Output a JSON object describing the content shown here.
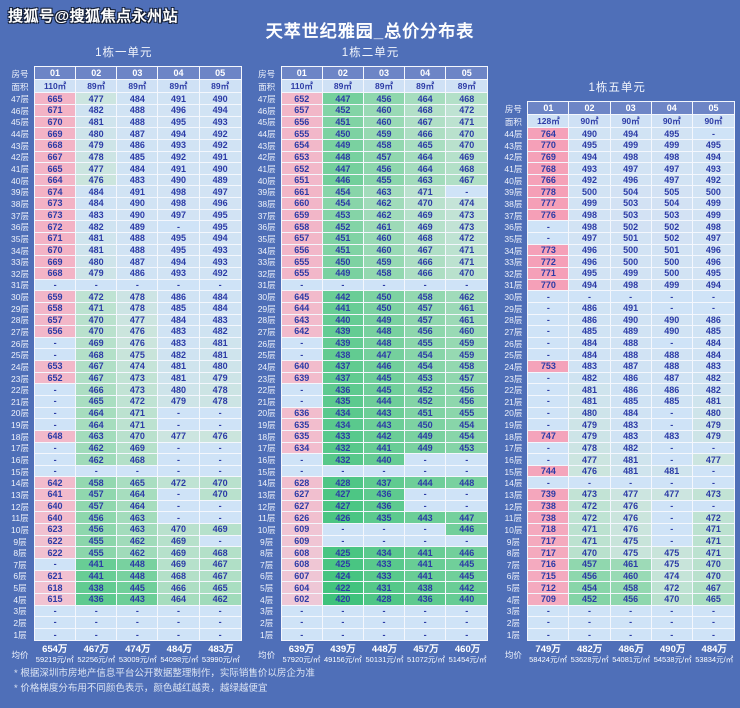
{
  "watermark": "搜狐号@搜狐焦点永州站",
  "title": "天萃世纪雅园_总价分布表",
  "labels": {
    "room_no": "房号",
    "area": "面积",
    "floor_suffix": "层",
    "average": "均价",
    "dash": "-"
  },
  "footnotes": [
    "* 根据深圳市房地产信息平台公开数据整理制作，实际销售价以房企为准",
    "* 价格梯度分布用不同颜色表示，颜色越红越贵，越绿越便宜"
  ],
  "colors": {
    "page_bg": "#4f6fb8",
    "grid_border": "#f4f7fd",
    "cell_text": "#2c3ba6",
    "room_header_bg": "#6d85c6",
    "area_header_bg": "#cfe1f5",
    "empty_cell_bg": "#cfe3f7",
    "label_text": "#eef2fb"
  },
  "gradient_stops": [
    [
      420,
      "#3fc27c"
    ],
    [
      446,
      "#72cf9b"
    ],
    [
      458,
      "#93d8b0"
    ],
    [
      468,
      "#b3e0c8"
    ],
    [
      476,
      "#cbe5dd"
    ],
    [
      483,
      "#d0e3f4"
    ],
    [
      520,
      "#d5e2f4"
    ],
    [
      575,
      "#e7d2e0"
    ],
    [
      615,
      "#f1c3d2"
    ],
    [
      680,
      "#f3b0c3"
    ],
    [
      778,
      "#f59fb7"
    ]
  ],
  "chart_data": {
    "type": "table",
    "tables": [
      {
        "name": "1栋一单元",
        "columns": [
          "01",
          "02",
          "03",
          "04",
          "05"
        ],
        "areas": [
          "110㎡",
          "89㎡",
          "89㎡",
          "89㎡",
          "89㎡"
        ],
        "floor_start": 47,
        "unit": "万",
        "rows": [
          [
            665,
            477,
            484,
            491,
            490
          ],
          [
            671,
            482,
            488,
            496,
            494
          ],
          [
            670,
            481,
            488,
            495,
            493
          ],
          [
            669,
            480,
            487,
            494,
            492
          ],
          [
            668,
            479,
            486,
            493,
            492
          ],
          [
            667,
            478,
            485,
            492,
            491
          ],
          [
            665,
            477,
            484,
            491,
            490
          ],
          [
            664,
            476,
            483,
            490,
            489
          ],
          [
            674,
            484,
            491,
            498,
            497
          ],
          [
            673,
            484,
            490,
            498,
            496
          ],
          [
            673,
            483,
            490,
            497,
            495
          ],
          [
            672,
            482,
            489,
            null,
            495
          ],
          [
            671,
            481,
            488,
            495,
            494
          ],
          [
            670,
            481,
            488,
            495,
            493
          ],
          [
            669,
            480,
            487,
            494,
            493
          ],
          [
            668,
            479,
            486,
            493,
            492
          ],
          [
            null,
            null,
            null,
            null,
            null
          ],
          [
            659,
            472,
            478,
            486,
            484
          ],
          [
            658,
            471,
            478,
            485,
            484
          ],
          [
            657,
            470,
            477,
            484,
            483
          ],
          [
            656,
            470,
            476,
            483,
            482
          ],
          [
            null,
            469,
            476,
            483,
            481
          ],
          [
            null,
            468,
            475,
            482,
            481
          ],
          [
            653,
            467,
            474,
            481,
            480
          ],
          [
            652,
            467,
            473,
            481,
            479
          ],
          [
            null,
            466,
            473,
            480,
            478
          ],
          [
            null,
            465,
            472,
            479,
            478
          ],
          [
            null,
            464,
            471,
            null,
            null
          ],
          [
            null,
            464,
            471,
            null,
            null
          ],
          [
            648,
            463,
            470,
            477,
            476
          ],
          [
            null,
            462,
            469,
            null,
            null
          ],
          [
            null,
            462,
            468,
            null,
            null
          ],
          [
            null,
            null,
            null,
            null,
            null
          ],
          [
            642,
            458,
            465,
            472,
            470
          ],
          [
            641,
            457,
            464,
            null,
            470
          ],
          [
            640,
            457,
            464,
            null,
            null
          ],
          [
            640,
            456,
            463,
            null,
            null
          ],
          [
            623,
            456,
            463,
            470,
            469
          ],
          [
            622,
            455,
            462,
            469,
            null
          ],
          [
            622,
            455,
            462,
            469,
            468
          ],
          [
            null,
            441,
            448,
            469,
            467
          ],
          [
            621,
            441,
            448,
            468,
            467
          ],
          [
            618,
            438,
            445,
            466,
            465
          ],
          [
            615,
            436,
            443,
            464,
            462
          ],
          [
            null,
            null,
            null,
            null,
            null
          ],
          [
            null,
            null,
            null,
            null,
            null
          ],
          [
            null,
            null,
            null,
            null,
            null
          ]
        ],
        "averages": [
          [
            "654万",
            "59219元/㎡"
          ],
          [
            "467万",
            "52256元/㎡"
          ],
          [
            "474万",
            "53009元/㎡"
          ],
          [
            "484万",
            "54098元/㎡"
          ],
          [
            "483万",
            "53990元/㎡"
          ]
        ]
      },
      {
        "name": "1栋二单元",
        "columns": [
          "01",
          "02",
          "03",
          "04",
          "05"
        ],
        "areas": [
          "110㎡",
          "89㎡",
          "89㎡",
          "89㎡",
          "89㎡"
        ],
        "floor_start": 47,
        "unit": "万",
        "rows": [
          [
            652,
            447,
            456,
            464,
            468
          ],
          [
            657,
            452,
            460,
            468,
            472
          ],
          [
            656,
            451,
            460,
            467,
            471
          ],
          [
            655,
            450,
            459,
            466,
            470
          ],
          [
            654,
            449,
            458,
            465,
            470
          ],
          [
            653,
            448,
            457,
            464,
            469
          ],
          [
            652,
            447,
            456,
            464,
            468
          ],
          [
            651,
            446,
            455,
            463,
            467
          ],
          [
            661,
            454,
            463,
            471,
            null
          ],
          [
            660,
            454,
            462,
            470,
            474
          ],
          [
            659,
            453,
            462,
            469,
            473
          ],
          [
            658,
            452,
            461,
            469,
            473
          ],
          [
            657,
            451,
            460,
            468,
            472
          ],
          [
            656,
            451,
            460,
            467,
            471
          ],
          [
            655,
            450,
            459,
            466,
            471
          ],
          [
            655,
            449,
            458,
            466,
            470
          ],
          [
            null,
            null,
            null,
            null,
            null
          ],
          [
            645,
            442,
            450,
            458,
            462
          ],
          [
            644,
            441,
            450,
            457,
            461
          ],
          [
            643,
            440,
            449,
            457,
            461
          ],
          [
            642,
            439,
            448,
            456,
            460
          ],
          [
            null,
            439,
            448,
            455,
            459
          ],
          [
            null,
            438,
            447,
            454,
            459
          ],
          [
            640,
            437,
            446,
            454,
            458
          ],
          [
            639,
            437,
            445,
            453,
            457
          ],
          [
            null,
            436,
            445,
            452,
            456
          ],
          [
            null,
            435,
            444,
            452,
            456
          ],
          [
            636,
            434,
            443,
            451,
            455
          ],
          [
            635,
            434,
            443,
            450,
            454
          ],
          [
            635,
            433,
            442,
            449,
            454
          ],
          [
            634,
            432,
            441,
            449,
            453
          ],
          [
            null,
            432,
            440,
            null,
            null
          ],
          [
            null,
            null,
            null,
            null,
            null
          ],
          [
            628,
            428,
            437,
            444,
            448
          ],
          [
            627,
            427,
            436,
            null,
            null
          ],
          [
            627,
            427,
            436,
            null,
            null
          ],
          [
            626,
            426,
            435,
            443,
            447
          ],
          [
            609,
            null,
            null,
            null,
            446
          ],
          [
            609,
            null,
            null,
            null,
            null
          ],
          [
            608,
            425,
            434,
            441,
            446
          ],
          [
            608,
            425,
            433,
            441,
            445
          ],
          [
            607,
            424,
            433,
            441,
            445
          ],
          [
            604,
            422,
            431,
            438,
            442
          ],
          [
            602,
            420,
            428,
            436,
            440
          ],
          [
            null,
            null,
            null,
            null,
            null
          ],
          [
            null,
            null,
            null,
            null,
            null
          ],
          [
            null,
            null,
            null,
            null,
            null
          ]
        ],
        "averages": [
          [
            "639万",
            "57920元/㎡"
          ],
          [
            "439万",
            "49156元/㎡"
          ],
          [
            "448万",
            "50131元/㎡"
          ],
          [
            "457万",
            "51072元/㎡"
          ],
          [
            "460万",
            "51454元/㎡"
          ]
        ]
      },
      {
        "name": "1栋五单元",
        "columns": [
          "01",
          "02",
          "03",
          "04",
          "05"
        ],
        "areas": [
          "128㎡",
          "90㎡",
          "90㎡",
          "90㎡",
          "90㎡"
        ],
        "floor_start": 44,
        "unit": "万",
        "rows": [
          [
            764,
            490,
            494,
            495,
            null
          ],
          [
            770,
            495,
            499,
            499,
            495
          ],
          [
            769,
            494,
            498,
            498,
            494
          ],
          [
            768,
            493,
            497,
            497,
            493
          ],
          [
            766,
            492,
            496,
            497,
            492
          ],
          [
            778,
            500,
            504,
            505,
            500
          ],
          [
            777,
            499,
            503,
            504,
            499
          ],
          [
            776,
            498,
            503,
            503,
            499
          ],
          [
            null,
            498,
            502,
            502,
            498
          ],
          [
            null,
            497,
            501,
            502,
            497
          ],
          [
            773,
            496,
            500,
            501,
            496
          ],
          [
            772,
            496,
            500,
            500,
            496
          ],
          [
            771,
            495,
            499,
            500,
            495
          ],
          [
            770,
            494,
            498,
            499,
            494
          ],
          [
            null,
            null,
            null,
            null,
            null
          ],
          [
            null,
            486,
            491,
            null,
            null
          ],
          [
            null,
            486,
            490,
            490,
            486
          ],
          [
            null,
            485,
            489,
            490,
            485
          ],
          [
            null,
            484,
            488,
            null,
            484
          ],
          [
            null,
            484,
            488,
            488,
            484
          ],
          [
            753,
            483,
            487,
            488,
            483
          ],
          [
            null,
            482,
            486,
            487,
            482
          ],
          [
            null,
            481,
            486,
            486,
            482
          ],
          [
            null,
            481,
            485,
            485,
            481
          ],
          [
            null,
            480,
            484,
            null,
            480
          ],
          [
            null,
            479,
            483,
            null,
            479
          ],
          [
            747,
            479,
            483,
            483,
            479
          ],
          [
            null,
            478,
            482,
            null,
            null
          ],
          [
            null,
            477,
            481,
            null,
            477
          ],
          [
            744,
            476,
            481,
            481,
            null
          ],
          [
            null,
            null,
            null,
            null,
            null
          ],
          [
            739,
            473,
            477,
            477,
            473
          ],
          [
            738,
            472,
            476,
            null,
            null
          ],
          [
            738,
            472,
            476,
            null,
            472
          ],
          [
            718,
            471,
            476,
            null,
            471
          ],
          [
            717,
            471,
            475,
            null,
            471
          ],
          [
            717,
            470,
            475,
            475,
            471
          ],
          [
            716,
            457,
            461,
            475,
            470
          ],
          [
            715,
            456,
            460,
            474,
            470
          ],
          [
            712,
            454,
            458,
            472,
            467
          ],
          [
            709,
            452,
            456,
            470,
            465
          ],
          [
            null,
            null,
            null,
            null,
            null
          ],
          [
            null,
            null,
            null,
            null,
            null
          ],
          [
            null,
            null,
            null,
            null,
            null
          ]
        ],
        "averages": [
          [
            "749万",
            "58424元/㎡"
          ],
          [
            "482万",
            "53628元/㎡"
          ],
          [
            "486万",
            "54081元/㎡"
          ],
          [
            "490万",
            "54538元/㎡"
          ],
          [
            "484万",
            "53834元/㎡"
          ]
        ]
      }
    ]
  }
}
